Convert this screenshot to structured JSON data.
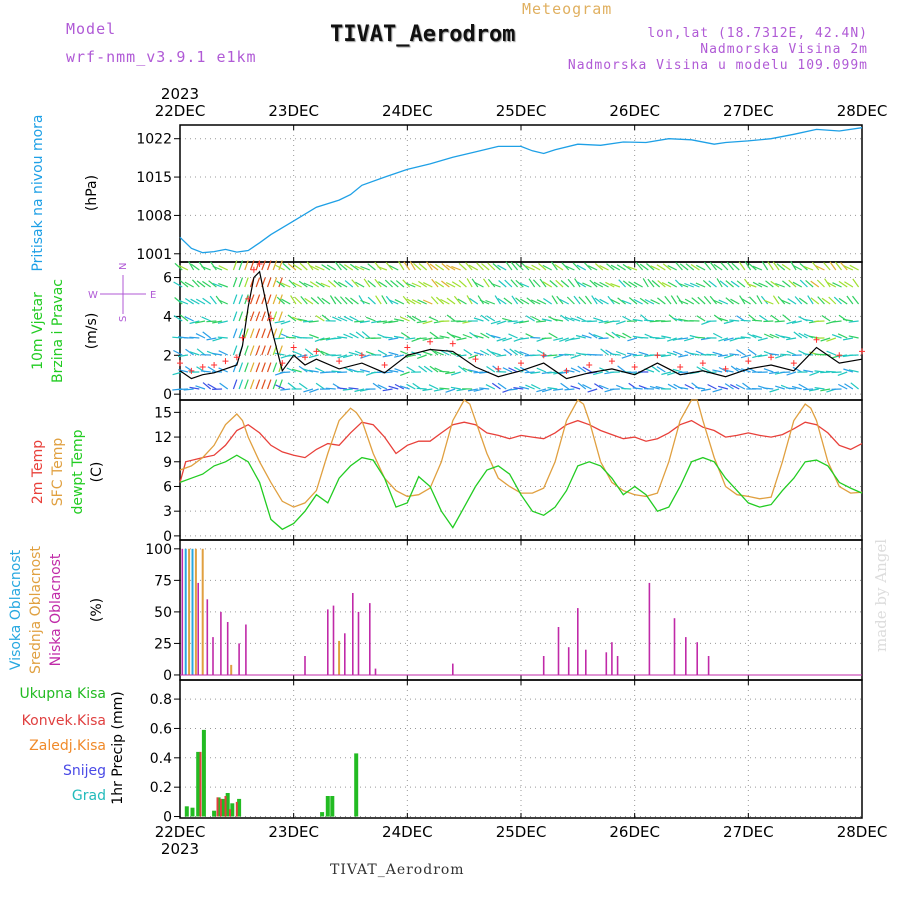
{
  "header": {
    "model_label": "Model",
    "model_version": "wrf-nmm_v3.9.1  e1km",
    "title": "TIVAT_Aerodrom",
    "meteogram_label": "Meteogram",
    "lonlat": "lon,lat (18.7312E, 42.4N)",
    "elevation": "Nadmorska Visina 2m",
    "model_elevation": "Nadmorska Visina u modelu 109.099m"
  },
  "footer": {
    "station": "TIVAT_Aerodrom",
    "credit": "made by Angel"
  },
  "colors": {
    "pressure": "#1ea0e6",
    "temp2m": "#e8403a",
    "sfc_temp": "#e0a040",
    "dewpoint": "#22cc22",
    "high_cloud": "#28a8e0",
    "mid_cloud": "#e0a040",
    "low_cloud": "#c02aa8",
    "total_precip": "#22bb22",
    "conv_precip": "#e04040",
    "frozen_precip": "#f08a2a",
    "snow": "#4a4ae6",
    "graupel": "#22bbbb",
    "wind_speed_line": "#000000",
    "gust_marker": "#ff3030"
  },
  "chart_data": [
    {
      "id": "pressure",
      "type": "line",
      "title": "",
      "ylabel_lines": [
        "Pritisak na nivou mora"
      ],
      "unit": "(hPa)",
      "x_categories": [
        "22DEC",
        "23DEC",
        "24DEC",
        "25DEC",
        "26DEC",
        "27DEC",
        "28DEC"
      ],
      "year_label": "2023",
      "ylim": [
        999.5,
        1024.5
      ],
      "yticks": [
        1001,
        1008,
        1015,
        1022
      ],
      "series": [
        {
          "x": [
            0,
            0.1,
            0.2,
            0.3,
            0.4,
            0.5,
            0.6,
            0.7,
            0.8,
            1.0,
            1.2,
            1.4,
            1.5,
            1.6,
            1.8,
            2.0,
            2.2,
            2.4,
            2.6,
            2.8,
            3.0,
            3.1,
            3.2,
            3.3,
            3.5,
            3.7,
            3.9,
            4.1,
            4.3,
            4.5,
            4.7,
            4.8,
            5.0,
            5.2,
            5.4,
            5.6,
            5.8,
            6.0
          ],
          "y": [
            1004,
            1002,
            1001.2,
            1001.4,
            1001.8,
            1001.3,
            1001.6,
            1003,
            1004.5,
            1007,
            1009.5,
            1010.8,
            1011.8,
            1013.5,
            1015,
            1016.4,
            1017.4,
            1018.6,
            1019.6,
            1020.6,
            1020.6,
            1019.8,
            1019.3,
            1020,
            1021,
            1020.8,
            1021.4,
            1021.3,
            1022,
            1021.8,
            1021,
            1021.3,
            1021.6,
            1022,
            1022.8,
            1023.7,
            1023.4,
            1024
          ]
        }
      ]
    },
    {
      "id": "wind",
      "type": "line",
      "title": "",
      "ylabel_lines": [
        "10m Vjetar",
        "Brzina i Pravac"
      ],
      "unit": "(m/s)",
      "compass": {
        "n": "N",
        "s": "S",
        "w": "W",
        "e": "E"
      },
      "ylim": [
        -0.3,
        6.8
      ],
      "yticks": [
        0,
        2,
        4,
        6
      ],
      "series": [
        {
          "name": "speed",
          "x": [
            0,
            0.1,
            0.2,
            0.3,
            0.4,
            0.5,
            0.55,
            0.6,
            0.65,
            0.7,
            0.8,
            0.9,
            1.0,
            1.1,
            1.2,
            1.4,
            1.6,
            1.8,
            2.0,
            2.2,
            2.4,
            2.6,
            2.8,
            3.0,
            3.2,
            3.4,
            3.6,
            3.8,
            4.0,
            4.2,
            4.4,
            4.6,
            4.8,
            5.0,
            5.2,
            5.4,
            5.6,
            5.8,
            6.0
          ],
          "y": [
            1.2,
            0.8,
            1.0,
            1.1,
            1.3,
            1.5,
            2.5,
            4.5,
            6.0,
            6.3,
            3.5,
            1.2,
            2.0,
            1.5,
            1.8,
            1.3,
            1.6,
            1.1,
            2.0,
            2.3,
            2.2,
            1.4,
            0.9,
            1.2,
            1.6,
            0.8,
            1.1,
            1.3,
            1.0,
            1.6,
            1.0,
            1.2,
            0.9,
            1.3,
            1.5,
            1.2,
            2.4,
            1.6,
            1.8
          ]
        }
      ]
    },
    {
      "id": "temperature",
      "type": "line",
      "title": "",
      "ylabel_lines": [
        "2m Temp",
        "SFC Temp",
        "dewpt Temp"
      ],
      "unit": "(C)",
      "ylim": [
        -0.5,
        16.5
      ],
      "yticks": [
        0,
        3,
        6,
        9,
        12,
        15
      ],
      "series": [
        {
          "name": "2m Temp",
          "x": [
            0,
            0.05,
            0.2,
            0.3,
            0.4,
            0.5,
            0.6,
            0.7,
            0.8,
            0.9,
            1.0,
            1.1,
            1.2,
            1.3,
            1.4,
            1.5,
            1.6,
            1.7,
            1.8,
            1.9,
            2.0,
            2.1,
            2.2,
            2.3,
            2.4,
            2.5,
            2.6,
            2.7,
            2.8,
            2.9,
            3.0,
            3.1,
            3.2,
            3.3,
            3.4,
            3.5,
            3.6,
            3.7,
            3.8,
            3.9,
            4.0,
            4.1,
            4.2,
            4.3,
            4.4,
            4.5,
            4.6,
            4.7,
            4.8,
            4.9,
            5.0,
            5.1,
            5.2,
            5.3,
            5.4,
            5.5,
            5.6,
            5.7,
            5.8,
            5.9,
            6.0
          ],
          "y": [
            6.5,
            9,
            9.5,
            9.8,
            11,
            12.8,
            13.5,
            12.5,
            11,
            10.2,
            9.8,
            9.5,
            10.5,
            11.2,
            11,
            12.5,
            13.8,
            13.5,
            12,
            10,
            11,
            11.5,
            11.5,
            12.5,
            13.5,
            13.8,
            13.5,
            12.5,
            12.2,
            11.8,
            12.2,
            12,
            11.8,
            12.5,
            13.5,
            14,
            13.5,
            12.8,
            12.3,
            11.8,
            12,
            11.5,
            11.8,
            12.5,
            13.5,
            14,
            13.2,
            12.8,
            12,
            12.2,
            12.5,
            12.2,
            12,
            12.3,
            13,
            13.8,
            13.5,
            12.5,
            11,
            10.5,
            11.2
          ]
        },
        {
          "name": "SFC Temp",
          "x": [
            0,
            0.1,
            0.2,
            0.3,
            0.4,
            0.5,
            0.55,
            0.6,
            0.7,
            0.8,
            0.9,
            1.0,
            1.1,
            1.2,
            1.3,
            1.4,
            1.5,
            1.55,
            1.6,
            1.7,
            1.8,
            1.9,
            2.0,
            2.1,
            2.2,
            2.3,
            2.4,
            2.5,
            2.55,
            2.6,
            2.7,
            2.8,
            2.9,
            3.0,
            3.1,
            3.2,
            3.3,
            3.4,
            3.5,
            3.55,
            3.6,
            3.7,
            3.8,
            3.9,
            4.0,
            4.1,
            4.2,
            4.3,
            4.4,
            4.5,
            4.55,
            4.6,
            4.7,
            4.8,
            4.9,
            5.0,
            5.1,
            5.2,
            5.3,
            5.4,
            5.5,
            5.55,
            5.6,
            5.7,
            5.8,
            5.9,
            6.0
          ],
          "y": [
            8,
            8.5,
            9.5,
            11,
            13.5,
            14.8,
            14,
            12,
            9,
            6.5,
            4.2,
            3.5,
            4,
            5.5,
            10,
            14,
            15.5,
            15,
            14,
            10,
            7,
            5.5,
            4.8,
            5,
            5.8,
            9,
            14,
            16.5,
            16,
            14,
            10,
            7,
            6,
            5.2,
            5.2,
            5.8,
            9,
            14,
            16.5,
            16,
            14,
            9,
            6.5,
            5.5,
            5,
            4.8,
            5.2,
            9,
            14,
            16.5,
            16.5,
            14,
            9.5,
            6,
            5,
            4.8,
            4.5,
            4.7,
            9,
            14,
            16,
            15.5,
            14,
            9,
            6,
            5.2,
            5.3
          ]
        },
        {
          "name": "dewpt Temp",
          "x": [
            0,
            0.1,
            0.2,
            0.3,
            0.4,
            0.5,
            0.6,
            0.7,
            0.8,
            0.9,
            1.0,
            1.1,
            1.2,
            1.3,
            1.4,
            1.5,
            1.6,
            1.7,
            1.8,
            1.9,
            2.0,
            2.1,
            2.2,
            2.3,
            2.4,
            2.5,
            2.6,
            2.7,
            2.8,
            2.9,
            3.0,
            3.1,
            3.2,
            3.3,
            3.4,
            3.5,
            3.6,
            3.7,
            3.8,
            3.9,
            4.0,
            4.1,
            4.2,
            4.3,
            4.4,
            4.5,
            4.6,
            4.7,
            4.8,
            4.9,
            5.0,
            5.1,
            5.2,
            5.3,
            5.4,
            5.5,
            5.6,
            5.7,
            5.8,
            5.9,
            6.0
          ],
          "y": [
            6.5,
            7,
            7.5,
            8.5,
            9,
            9.8,
            9,
            6.5,
            2,
            0.8,
            1.5,
            3,
            5,
            4,
            7,
            8.5,
            9.5,
            9.2,
            7,
            3.5,
            4,
            7.2,
            6,
            3,
            1,
            3.5,
            6,
            8,
            8.5,
            7.5,
            5,
            3,
            2.5,
            3.5,
            5.5,
            8.5,
            9,
            8.5,
            7,
            5,
            6,
            5,
            3,
            3.5,
            6,
            9,
            9.5,
            9,
            7,
            5.5,
            4,
            3.5,
            3.8,
            5.5,
            7,
            9,
            9.2,
            8.5,
            6.5,
            5.8,
            5.2
          ]
        }
      ]
    },
    {
      "id": "clouds",
      "type": "bar",
      "title": "",
      "ylabel_lines": [
        "Visoka Oblacnost",
        "Srednja Oblacnost",
        "Niska Oblacnost"
      ],
      "unit": "(%)",
      "ylim": [
        -4,
        107
      ],
      "yticks": [
        0,
        25,
        50,
        75,
        100
      ],
      "series": [
        {
          "name": "Visoka Oblacnost",
          "x": [
            0.05,
            0.11
          ],
          "values": [
            100,
            100
          ]
        },
        {
          "name": "Srednja Oblacnost",
          "x": [
            0.08,
            0.14,
            0.2,
            0.45,
            1.4
          ],
          "values": [
            100,
            100,
            100,
            8,
            27
          ]
        },
        {
          "name": "Niska Oblacnost",
          "x": [
            0.02,
            0.16,
            0.24,
            0.29,
            0.36,
            0.42,
            0.52,
            0.58,
            1.1,
            1.3,
            1.35,
            1.45,
            1.52,
            1.57,
            1.67,
            1.72,
            2.4,
            3.2,
            3.33,
            3.42,
            3.5,
            3.57,
            3.75,
            3.8,
            3.85,
            4.13,
            4.35,
            4.45,
            4.55,
            4.65
          ],
          "values": [
            100,
            73,
            60,
            30,
            50,
            42,
            25,
            40,
            15,
            52,
            55,
            33,
            65,
            50,
            57,
            5,
            9,
            15,
            38,
            22,
            53,
            20,
            18,
            26,
            15,
            73,
            45,
            30,
            26,
            15
          ]
        }
      ]
    },
    {
      "id": "precip",
      "type": "bar",
      "title": "",
      "ylabel_lines": [
        "Ukupna Kisa",
        "Konvek.Kisa",
        "Zaledj.Kisa",
        "Snijeg",
        "Grad"
      ],
      "unit": "1hr Precip (mm)",
      "ylim": [
        -0.01,
        0.93
      ],
      "yticks": [
        0,
        0.2,
        0.4,
        0.6,
        0.8
      ],
      "series": [
        {
          "name": "Ukupna Kisa",
          "x": [
            0.06,
            0.11,
            0.16,
            0.21,
            0.3,
            0.34,
            0.38,
            0.42,
            0.46,
            0.52,
            1.25,
            1.3,
            1.34,
            1.55
          ],
          "values": [
            0.07,
            0.06,
            0.44,
            0.59,
            0.04,
            0.13,
            0.12,
            0.16,
            0.09,
            0.12,
            0.03,
            0.14,
            0.14,
            0.43
          ]
        },
        {
          "name": "Konvek.Kisa",
          "x": [
            0.18,
            0.33,
            0.36,
            0.4,
            0.44,
            0.5
          ],
          "values": [
            0.44,
            0.13,
            0.12,
            0.14,
            0.05,
            0.1
          ]
        }
      ]
    }
  ]
}
